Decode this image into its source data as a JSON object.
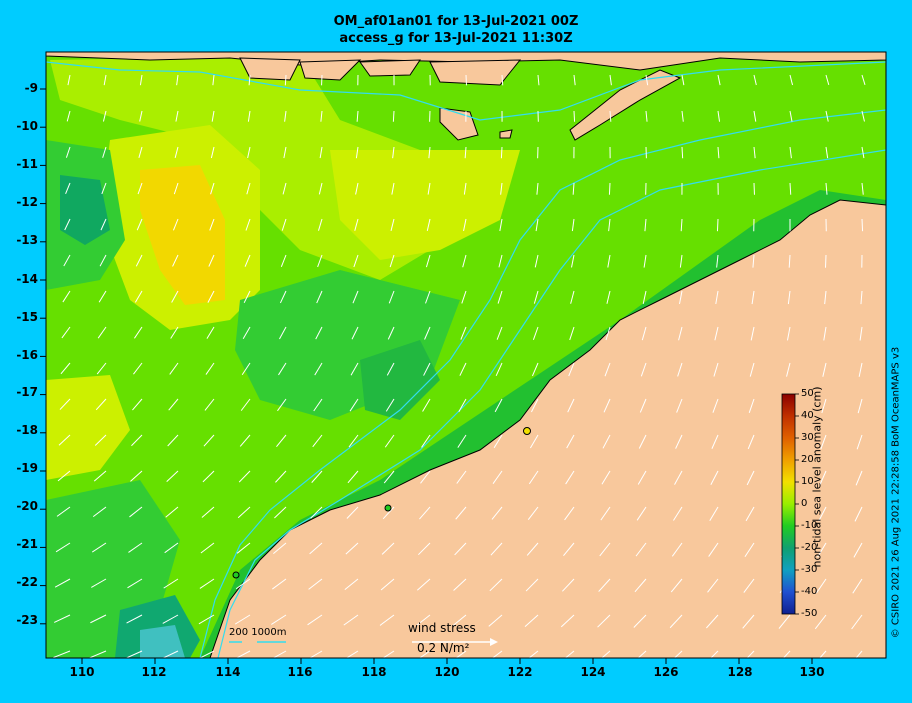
{
  "title": {
    "line1": "OM_af01an01 for 13-Jul-2021 00Z",
    "line2": "access_g for 13-Jul-2021 11:30Z"
  },
  "map": {
    "lon_ticks": [
      "110",
      "112",
      "114",
      "116",
      "118",
      "120",
      "122",
      "124",
      "126",
      "128",
      "130"
    ],
    "lat_ticks": [
      "-9",
      "-10",
      "-11",
      "-12",
      "-13",
      "-14",
      "-15",
      "-16",
      "-17",
      "-18",
      "-19",
      "-20",
      "-21",
      "-22",
      "-23"
    ],
    "land_color": "#f8c89c",
    "isobath_color": "#33ddee",
    "arrow_color": "#ffffff"
  },
  "colorbar": {
    "label": "non-tidal sea level anomaly (cm)",
    "ticks": [
      "50",
      "40",
      "30",
      "20",
      "10",
      "0",
      "-10",
      "-20",
      "-30",
      "-40",
      "-50"
    ],
    "colors": [
      "#8b0000",
      "#c03000",
      "#e06000",
      "#f0a000",
      "#f2e000",
      "#99ee00",
      "#22cc22",
      "#10a070",
      "#10a0c0",
      "#2050d0",
      "#102090"
    ]
  },
  "legend": {
    "isobaths": "200  1000m",
    "wind_stress_label": "wind stress",
    "wind_stress_value": "0.2 N/m²"
  },
  "credit": "© CSIRO 2021  26 Aug 2021 22:28:58 BoM OceanMAPS v3"
}
